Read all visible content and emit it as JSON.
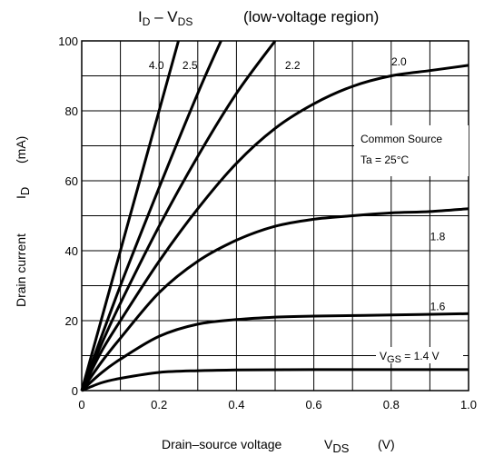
{
  "chart_data": {
    "type": "line",
    "title": {
      "main": "I",
      "main_sub": "D",
      "dash": " – V",
      "dash_sub": "DS",
      "suffix": "(low-voltage region)"
    },
    "xlabel": {
      "text": "Drain–source voltage",
      "symbol": "V",
      "symbol_sub": "DS",
      "unit": "(V)"
    },
    "ylabel": {
      "text": "Drain current",
      "symbol": "I",
      "symbol_sub": "D",
      "unit": "(mA)"
    },
    "xlim": [
      0,
      1.0
    ],
    "ylim": [
      0,
      100
    ],
    "xticks": [
      "0",
      "0.2",
      "0.4",
      "0.6",
      "0.8",
      "1.0"
    ],
    "yticks": [
      "0",
      "20",
      "40",
      "60",
      "80",
      "100"
    ],
    "grid": true,
    "annotation": {
      "line1": "Common Source",
      "line2": "Ta = 25°C"
    },
    "vgs_label": {
      "prefix": "V",
      "sub": "GS",
      "value": " = 1.4 V"
    },
    "series": [
      {
        "name": "4.0",
        "x": [
          0,
          0.1,
          0.2,
          0.25
        ],
        "y": [
          0,
          40,
          80,
          100
        ]
      },
      {
        "name": "2.5",
        "x": [
          0,
          0.1,
          0.2,
          0.3,
          0.36
        ],
        "y": [
          0,
          30,
          58,
          85,
          100
        ]
      },
      {
        "name": "2.2",
        "x": [
          0,
          0.05,
          0.1,
          0.2,
          0.3,
          0.4,
          0.5
        ],
        "y": [
          0,
          13,
          25,
          47,
          67,
          85,
          100
        ]
      },
      {
        "name": "2.0",
        "x": [
          0,
          0.05,
          0.1,
          0.2,
          0.3,
          0.4,
          0.5,
          0.6,
          0.7,
          0.8,
          0.9,
          1.0
        ],
        "y": [
          0,
          11,
          20,
          37,
          52,
          65,
          75,
          82,
          87,
          90,
          91.5,
          93
        ]
      },
      {
        "name": "1.8",
        "x": [
          0,
          0.05,
          0.1,
          0.2,
          0.3,
          0.4,
          0.5,
          0.6,
          0.7,
          0.8,
          0.9,
          1.0
        ],
        "y": [
          0,
          8,
          15,
          28,
          37,
          43,
          47,
          49,
          50,
          50.8,
          51.2,
          52
        ]
      },
      {
        "name": "1.6",
        "x": [
          0,
          0.05,
          0.1,
          0.2,
          0.3,
          0.4,
          0.5,
          0.6,
          0.8,
          1.0
        ],
        "y": [
          0,
          5,
          9,
          15.5,
          19,
          20.3,
          21,
          21.3,
          21.6,
          22
        ]
      },
      {
        "name": "1.4",
        "x": [
          0,
          0.05,
          0.1,
          0.2,
          0.3,
          0.4,
          0.6,
          0.8,
          1.0
        ],
        "y": [
          0,
          2.2,
          3.5,
          5.2,
          5.7,
          5.9,
          6,
          6,
          6
        ]
      }
    ],
    "series_labels": [
      "4.0",
      "2.5",
      "2.2",
      "2.0",
      "1.8",
      "1.6"
    ]
  }
}
